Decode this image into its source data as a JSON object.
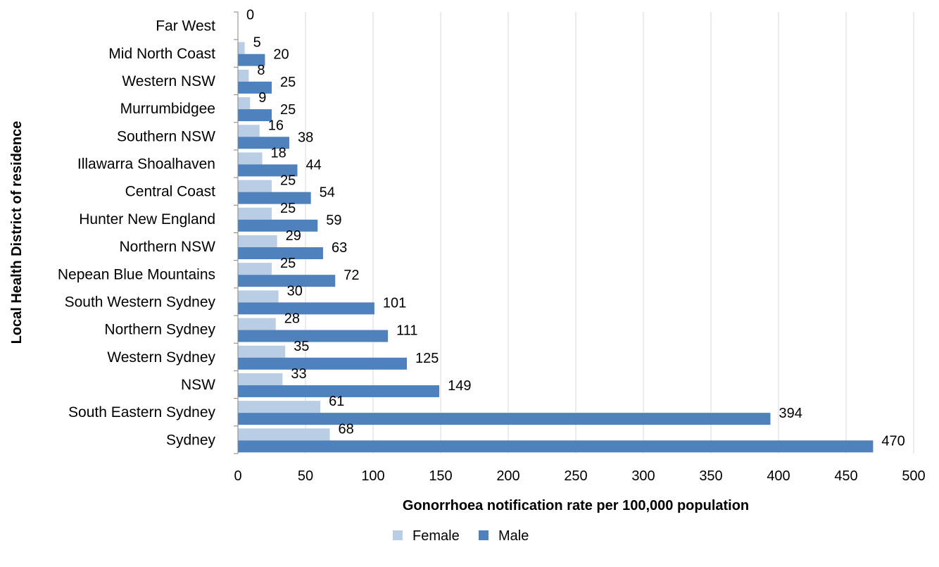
{
  "chart_data": {
    "type": "bar",
    "orientation": "horizontal",
    "categories": [
      "Far West",
      "Mid North Coast",
      "Western NSW",
      "Murrumbidgee",
      "Southern NSW",
      "Illawarra Shoalhaven",
      "Central Coast",
      "Hunter New England",
      "Northern NSW",
      "Nepean Blue Mountains",
      "South Western Sydney",
      "Northern Sydney",
      "Western Sydney",
      "NSW",
      "South Eastern Sydney",
      "Sydney"
    ],
    "series": [
      {
        "name": "Female",
        "color": "#b9cde5",
        "values": [
          0,
          5,
          8,
          9,
          16,
          18,
          25,
          25,
          29,
          25,
          30,
          28,
          35,
          33,
          61,
          68
        ]
      },
      {
        "name": "Male",
        "color": "#4f81bd",
        "values": [
          null,
          20,
          25,
          25,
          38,
          44,
          54,
          59,
          63,
          72,
          101,
          111,
          125,
          149,
          394,
          470
        ]
      }
    ],
    "xlabel": "Gonorrhoea notification rate per 100,000 population",
    "ylabel": "Local Health District of residence",
    "xlim": [
      0,
      500
    ],
    "xticks": [
      0,
      50,
      100,
      150,
      200,
      250,
      300,
      350,
      400,
      450,
      500
    ],
    "grid": "vertical",
    "legend_position": "bottom"
  }
}
